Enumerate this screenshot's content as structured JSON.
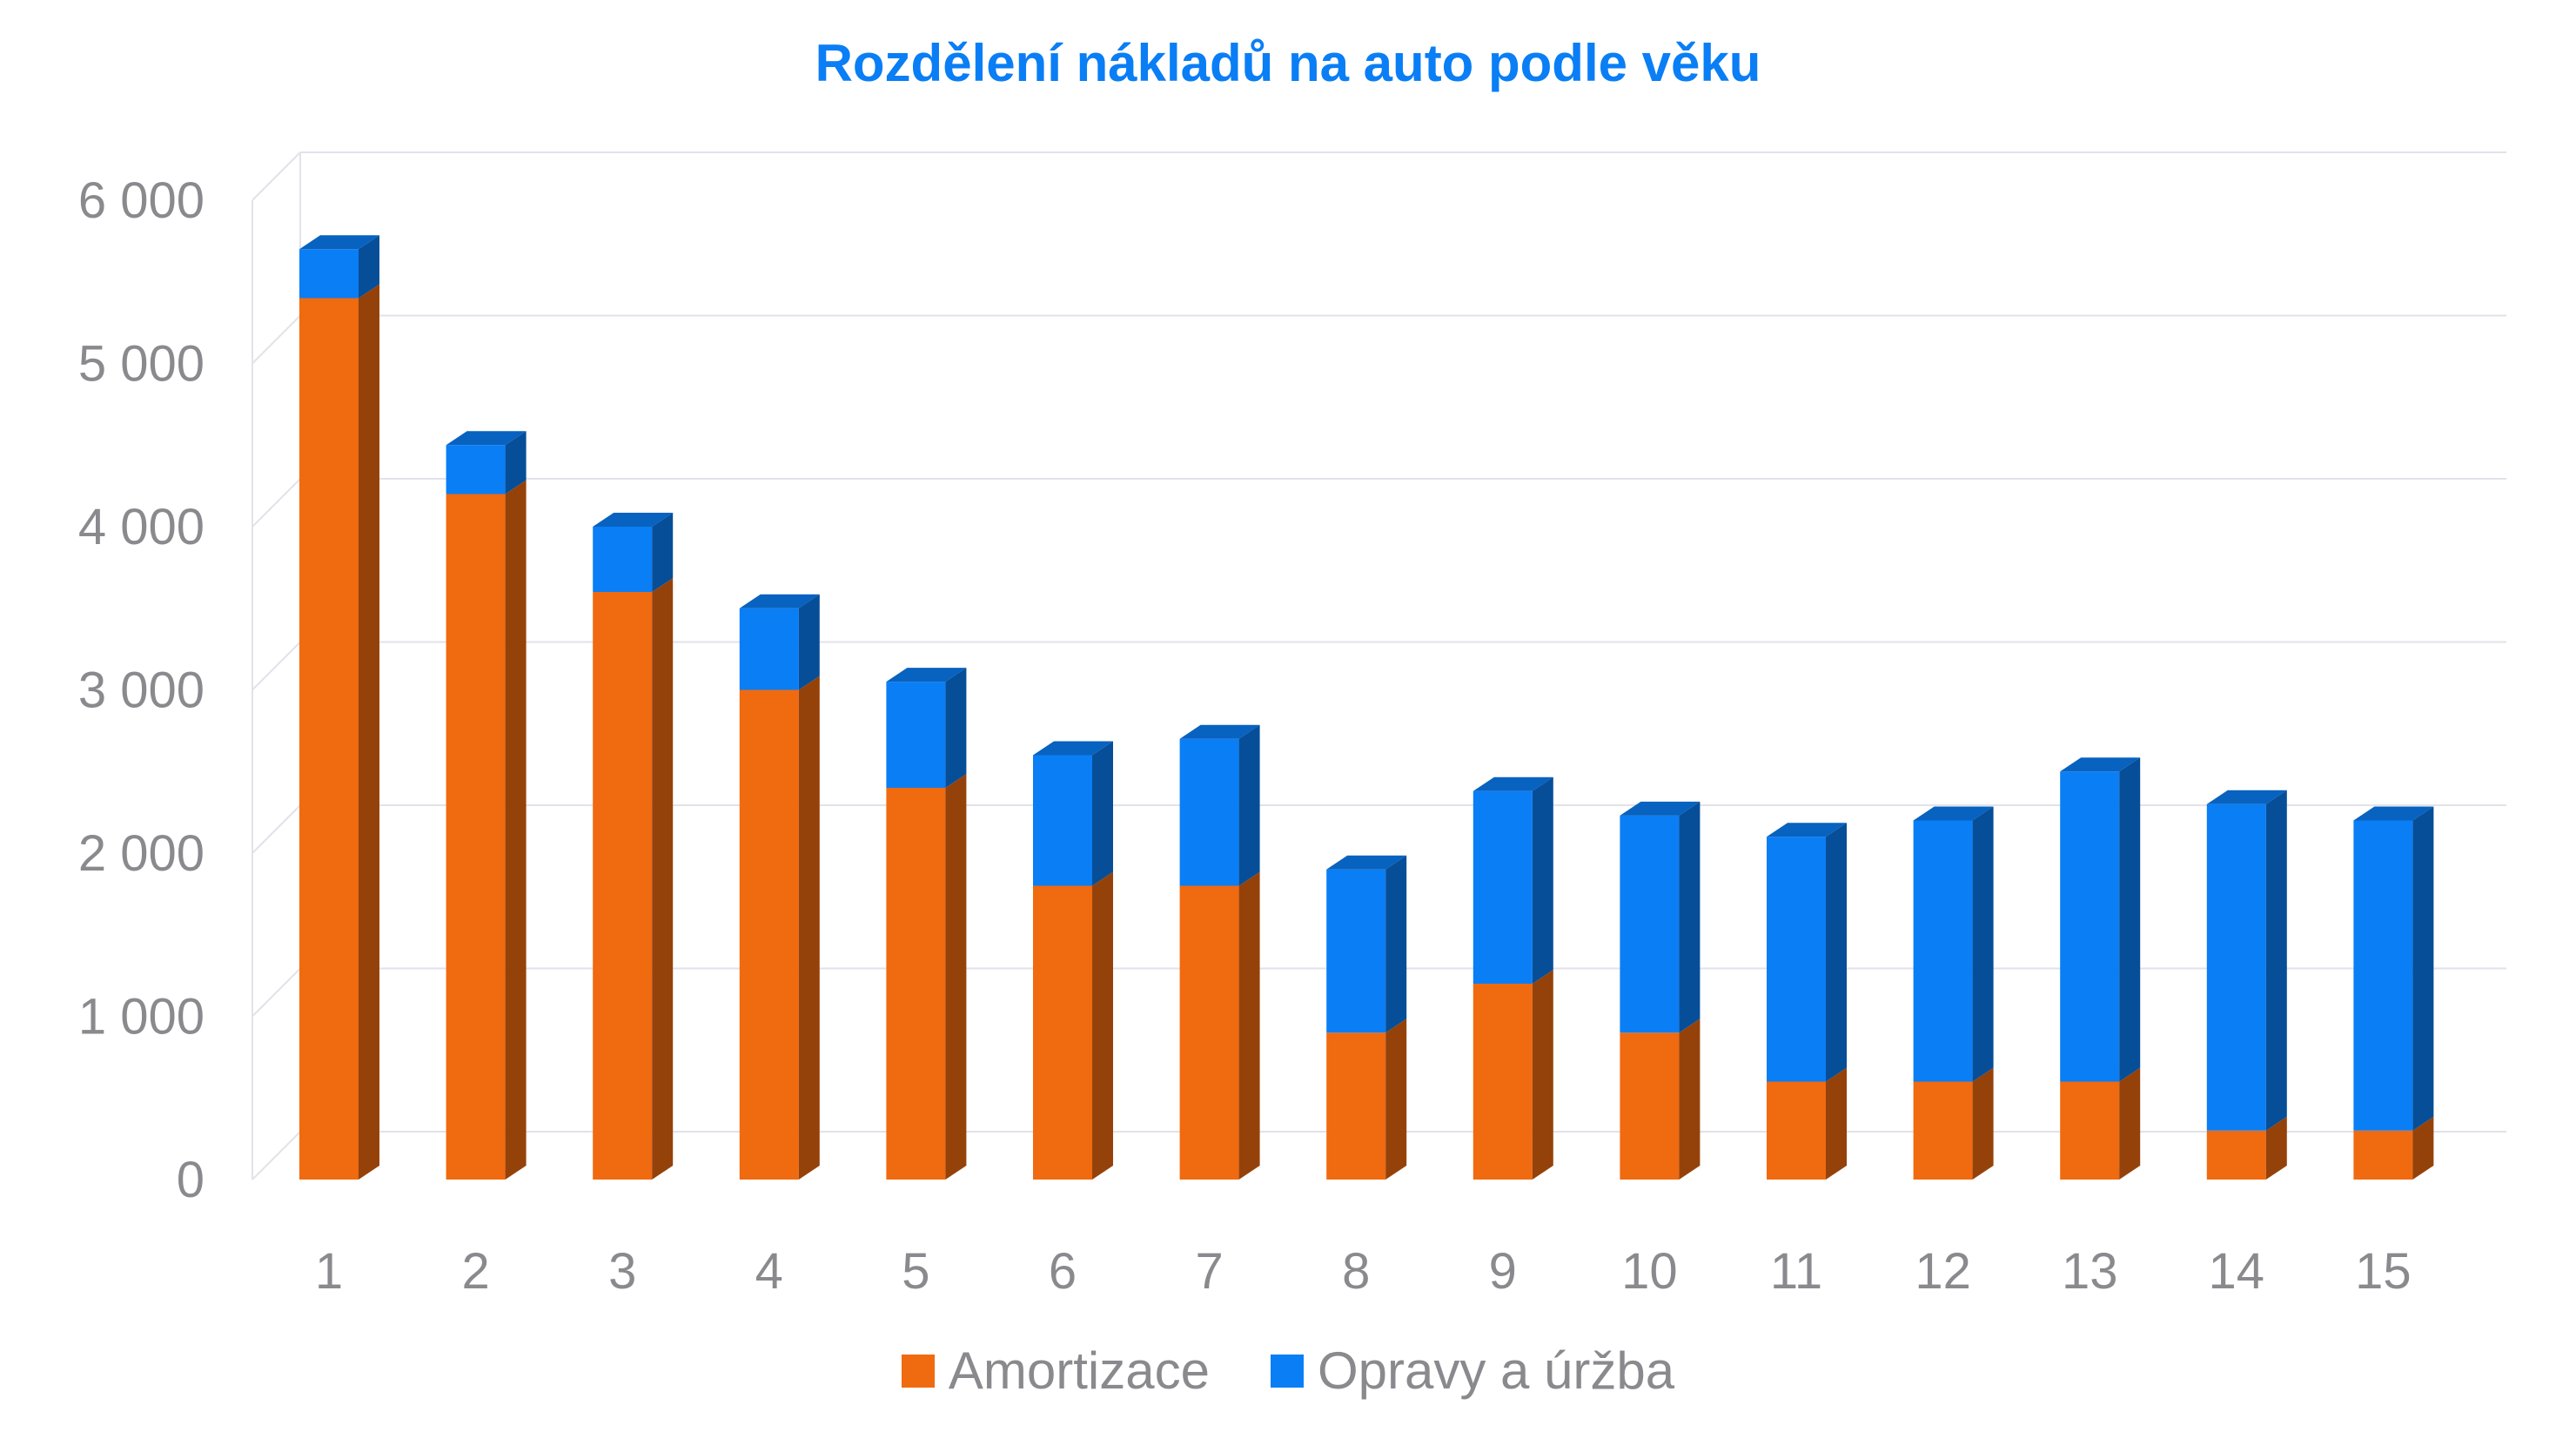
{
  "chart_data": {
    "type": "bar",
    "stacked": true,
    "style": "3d-column",
    "title": "Rozdělení nákladů na auto podle věku",
    "categories": [
      "1",
      "2",
      "3",
      "4",
      "5",
      "6",
      "7",
      "8",
      "9",
      "10",
      "11",
      "12",
      "13",
      "14",
      "15"
    ],
    "series": [
      {
        "name": "Amortizace",
        "color": "#f06a10",
        "values": [
          5400,
          4200,
          3600,
          3000,
          2400,
          1800,
          1800,
          900,
          1200,
          900,
          600,
          600,
          600,
          300,
          300
        ]
      },
      {
        "name": "Opravy a úržba",
        "color": "#0a7ef5",
        "values": [
          300,
          300,
          400,
          500,
          650,
          800,
          900,
          1000,
          1180,
          1330,
          1500,
          1600,
          1900,
          2000,
          1900
        ]
      }
    ],
    "ylim": [
      0,
      6000
    ],
    "yticks": [
      0,
      1000,
      2000,
      3000,
      4000,
      5000,
      6000
    ],
    "ytick_labels": [
      "0",
      "1 000",
      "2 000",
      "3 000",
      "4 000",
      "5 000",
      "6 000"
    ],
    "xlabel": "",
    "ylabel": "",
    "grid": true,
    "legend_position": "bottom",
    "title_color": "#0a7ef5"
  }
}
